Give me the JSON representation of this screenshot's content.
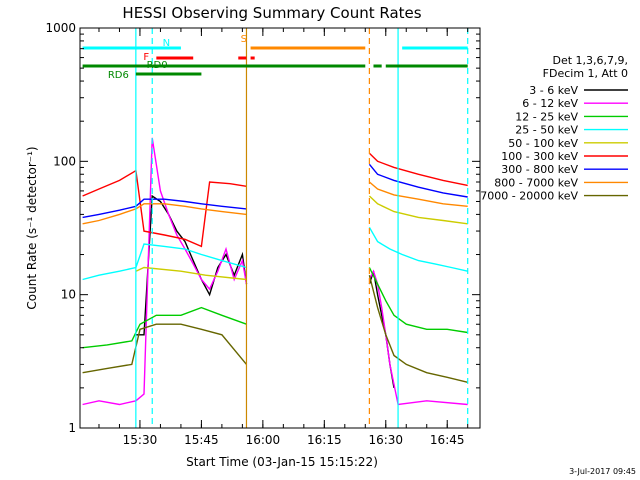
{
  "chart_data": {
    "type": "line",
    "title": "HESSI Observing Summary Count Rates",
    "xlabel": "Start Time (03-Jan-15 15:15:22)",
    "ylabel": "Count Rate (s⁻¹ detector⁻¹)",
    "yscale": "log",
    "xlim": [
      "15:15:22",
      "16:53:00"
    ],
    "ylim": [
      1,
      1000
    ],
    "x_ticks": [
      "15:30",
      "15:45",
      "16:00",
      "16:15",
      "16:30",
      "16:45"
    ],
    "y_ticks": [
      "1",
      "10",
      "100",
      "1000"
    ],
    "timestamp": "3-Jul-2017 09:45",
    "legend": {
      "placement": "right",
      "header": [
        "Det 1,3,6,7,9,",
        "FDecim 1, Att 0"
      ]
    },
    "series": [
      {
        "name": "3 - 6 keV",
        "color": "#000000",
        "x": [
          "15:29",
          "15:31",
          "15:33",
          "15:35",
          "15:37",
          "15:39",
          "15:41",
          "15:43",
          "15:45",
          "15:47",
          "15:49",
          "15:51",
          "15:53",
          "15:55",
          "15:56",
          "16:26",
          "16:27",
          "16:28",
          "16:29",
          "16:30",
          "16:31",
          "16:32"
        ],
        "y": [
          5,
          5,
          55,
          50,
          40,
          30,
          25,
          18,
          13,
          10,
          16,
          20,
          14,
          20,
          12,
          12,
          15,
          10,
          7,
          5,
          3,
          2
        ]
      },
      {
        "name": "6 - 12 keV",
        "color": "#ff00ff",
        "x": [
          "15:16",
          "15:20",
          "15:25",
          "15:29",
          "15:31",
          "15:33",
          "15:35",
          "15:37",
          "15:39",
          "15:41",
          "15:43",
          "15:45",
          "15:47",
          "15:49",
          "15:51",
          "15:53",
          "15:55",
          "15:56",
          "16:26",
          "16:27",
          "16:28",
          "16:29",
          "16:30",
          "16:31",
          "16:33",
          "16:40",
          "16:50"
        ],
        "y": [
          1.5,
          1.6,
          1.5,
          1.6,
          1.8,
          150,
          60,
          40,
          28,
          22,
          17,
          13,
          11,
          15,
          22,
          13,
          18,
          12,
          13,
          15,
          12,
          8,
          5,
          3,
          1.5,
          1.6,
          1.5
        ]
      },
      {
        "name": "12 - 25 keV",
        "color": "#00cc00",
        "x": [
          "15:16",
          "15:22",
          "15:28",
          "15:30",
          "15:34",
          "15:40",
          "15:45",
          "15:50",
          "15:56",
          "16:26",
          "16:28",
          "16:30",
          "16:32",
          "16:35",
          "16:40",
          "16:45",
          "16:50"
        ],
        "y": [
          4,
          4.2,
          4.5,
          6,
          7,
          7,
          8,
          7,
          6,
          16,
          12,
          9,
          7,
          6,
          5.5,
          5.5,
          5.2
        ]
      },
      {
        "name": "25 - 50 keV",
        "color": "#00ffff",
        "x": [
          "15:16",
          "15:20",
          "15:25",
          "15:29",
          "15:31",
          "15:36",
          "15:41",
          "15:45",
          "15:50",
          "15:56",
          "16:26",
          "16:28",
          "16:31",
          "16:34",
          "16:38",
          "16:42",
          "16:46",
          "16:50"
        ],
        "y": [
          13,
          14,
          15,
          16,
          24,
          23,
          22,
          20,
          18,
          16,
          32,
          25,
          22,
          20,
          18,
          17,
          16,
          15
        ]
      },
      {
        "name": "50 - 100 keV",
        "color": "#cccc00",
        "x": [
          "15:16",
          "15:29",
          "15:31",
          "15:40",
          "15:46",
          "15:56",
          "16:26",
          "16:28",
          "16:32",
          "16:38",
          "16:44",
          "16:50"
        ],
        "y": [
          13,
          15,
          16,
          15,
          14,
          13,
          55,
          48,
          42,
          38,
          36,
          34
        ]
      },
      {
        "name": "100 - 300 keV",
        "color": "#ff0000",
        "x": [
          "15:16",
          "15:20",
          "15:25",
          "15:29",
          "15:31",
          "15:36",
          "15:41",
          "15:45",
          "15:47",
          "15:52",
          "15:56",
          "16:26",
          "16:28",
          "16:32",
          "16:38",
          "16:44",
          "16:50"
        ],
        "y": [
          55,
          62,
          72,
          85,
          30,
          28,
          26,
          23,
          70,
          68,
          65,
          115,
          100,
          90,
          80,
          72,
          66
        ]
      },
      {
        "name": "300 - 800 keV",
        "color": "#0000ff",
        "x": [
          "15:16",
          "15:20",
          "15:25",
          "15:29",
          "15:31",
          "15:36",
          "15:41",
          "15:45",
          "15:50",
          "15:56",
          "16:26",
          "16:28",
          "16:32",
          "16:38",
          "16:44",
          "16:50"
        ],
        "y": [
          38,
          40,
          43,
          46,
          52,
          52,
          50,
          48,
          46,
          44,
          95,
          80,
          72,
          64,
          58,
          54
        ]
      },
      {
        "name": "800 - 7000 keV",
        "color": "#ff8800",
        "x": [
          "15:16",
          "15:20",
          "15:25",
          "15:29",
          "15:31",
          "15:36",
          "15:41",
          "15:45",
          "15:50",
          "15:56",
          "16:26",
          "16:28",
          "16:32",
          "16:38",
          "16:44",
          "16:50"
        ],
        "y": [
          34,
          36,
          40,
          44,
          48,
          48,
          46,
          44,
          42,
          40,
          70,
          62,
          56,
          52,
          48,
          46
        ]
      },
      {
        "name": "7000 - 20000 keV",
        "color": "#666600",
        "x": [
          "15:16",
          "15:22",
          "15:28",
          "15:30",
          "15:34",
          "15:40",
          "15:45",
          "15:50",
          "15:56",
          "16:26",
          "16:28",
          "16:30",
          "16:32",
          "16:35",
          "16:40",
          "16:45",
          "16:50"
        ],
        "y": [
          2.6,
          2.8,
          3,
          5.5,
          6,
          6,
          5.5,
          5,
          3,
          14,
          8,
          5,
          3.5,
          3,
          2.6,
          2.4,
          2.2
        ]
      }
    ],
    "flag_bars": [
      {
        "label": "N",
        "color": "#00ffff",
        "level": "upper",
        "segments": [
          [
            "15:16",
            "15:40"
          ],
          [
            "16:34",
            "16:50"
          ]
        ]
      },
      {
        "label": "S",
        "color": "#ff8800",
        "level": "upper",
        "segments": [
          [
            "15:57",
            "16:25"
          ]
        ]
      },
      {
        "label": "F",
        "color": "#ff0000",
        "level": "middle",
        "segments": [
          [
            "15:34",
            "15:43"
          ],
          [
            "15:54",
            "15:56"
          ],
          [
            "15:57",
            "15:58"
          ]
        ]
      },
      {
        "label": "RD0",
        "color": "#008800",
        "level": "lower",
        "segments": [
          [
            "15:16",
            "16:25"
          ],
          [
            "16:27",
            "16:29"
          ],
          [
            "16:30",
            "16:50"
          ]
        ]
      },
      {
        "label": "RD6",
        "color": "#008800",
        "level": "lowest",
        "segments": [
          [
            "15:29",
            "15:45"
          ]
        ]
      }
    ],
    "vertical_markers": [
      {
        "x": "15:29",
        "color": "#00ffff",
        "style": "solid"
      },
      {
        "x": "15:33",
        "color": "#00ffff",
        "style": "dashed"
      },
      {
        "x": "15:56",
        "color": "#cc8800",
        "style": "solid"
      },
      {
        "x": "16:26",
        "color": "#ff8800",
        "style": "dashed"
      },
      {
        "x": "16:33",
        "color": "#00ffff",
        "style": "solid"
      },
      {
        "x": "16:50",
        "color": "#00ffff",
        "style": "dashed"
      }
    ]
  }
}
